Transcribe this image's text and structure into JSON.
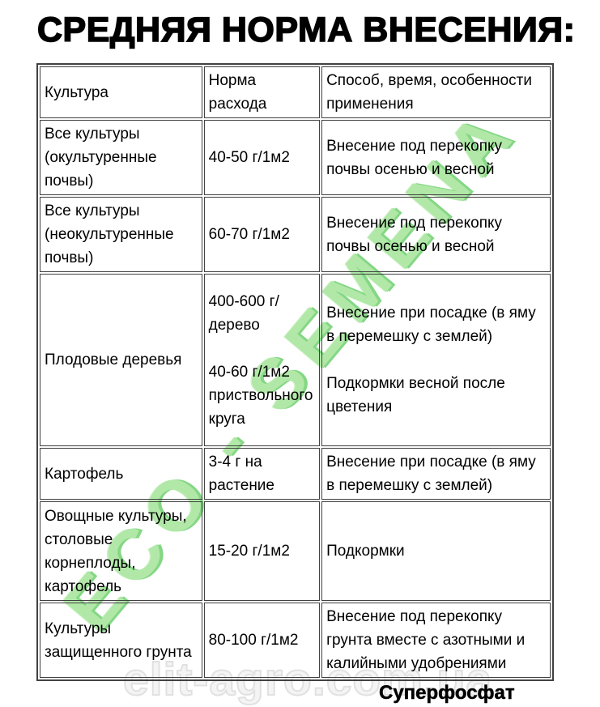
{
  "title": "СРЕДНЯЯ НОРМА ВНЕСЕНИЯ:",
  "watermarks": {
    "diagonal_brand": "ECO - SEMENA",
    "site": "elit-agro.com.ua"
  },
  "footer": {
    "product_label": "Суперфосфат"
  },
  "colors": {
    "watermark_green": "#abe7a1",
    "watermark_green_shadow": "#7ad47a",
    "watermark_gray": "#e1e1e1",
    "table_border": "#414141",
    "text": "#000000",
    "background": "#ffffff"
  },
  "table": {
    "headers": [
      "Культура",
      "Норма\nрасхода",
      "Способ, время, особенности\nприменения"
    ],
    "rows": [
      [
        "Все культуры\n(окультуренные\nпочвы)",
        "40-50 г/1м2",
        "Внесение под перекопку\nпочвы осенью и весной"
      ],
      [
        "Все культуры\n(неокультуренные\nпочвы)",
        "60-70 г/1м2",
        "Внесение под перекопку\nпочвы осенью и весной"
      ],
      [
        "Плодовые деревья",
        "400-600 г/\nдерево\n\n40-60 г/1м2\nприствольного\nкруга",
        "Внесение при посадке (в яму\nв перемешку с землей)\n\nПодкормки весной после\nцветения"
      ],
      [
        "Картофель",
        "3-4 г на\nрастение",
        "Внесение при посадке (в яму\nв перемешку с землей)"
      ],
      [
        "Овощные культуры,\nстоловые\nкорнеплоды,\nкартофель",
        "15-20 г/1м2",
        "Подкормки"
      ],
      [
        "Культуры\nзащищенного грунта",
        "80-100 г/1м2",
        "Внесение под перекопку\nгрунта вместе с азотными и\nкалийными удобрениями"
      ]
    ]
  }
}
